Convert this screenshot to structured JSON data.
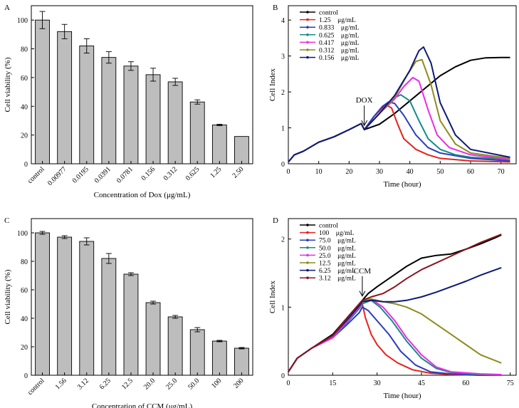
{
  "chart_data": [
    {
      "id": "A",
      "type": "bar",
      "panel_label": "A",
      "xlabel": "Concentration of Dox (μg/mL)",
      "ylabel": "Cell viability (%)",
      "ylim": [
        0,
        110
      ],
      "yticks": [
        0,
        20,
        40,
        60,
        80,
        100
      ],
      "categories": [
        "control",
        "0.00977",
        "0.0195",
        "0.0391",
        "0.0781",
        "0.156",
        "0.312",
        "0.625",
        "1.25",
        "2.50"
      ],
      "values": [
        100,
        92,
        82,
        74,
        68,
        62,
        57,
        43,
        27,
        19
      ],
      "errors": [
        6,
        5,
        5,
        4,
        3,
        4.5,
        2.5,
        1.5,
        0.5,
        0
      ]
    },
    {
      "id": "B",
      "type": "line",
      "panel_label": "B",
      "xlabel": "Time (hour)",
      "ylabel": "Cell Index",
      "xlim": [
        0,
        75
      ],
      "ylim": [
        0,
        4.4
      ],
      "xticks": [
        0,
        10,
        20,
        30,
        40,
        50,
        60,
        70
      ],
      "yticks": [
        0,
        1,
        2,
        3,
        4
      ],
      "annotation": "DOX",
      "annotation_x": 25,
      "legend_position": "top-left",
      "series": [
        {
          "name": "control",
          "color": "#000000",
          "x": [
            0,
            2,
            5,
            10,
            15,
            20,
            24,
            25,
            30,
            35,
            40,
            45,
            50,
            55,
            60,
            65,
            70,
            73
          ],
          "y": [
            0.05,
            0.25,
            0.35,
            0.6,
            0.75,
            0.95,
            1.12,
            0.95,
            1.1,
            1.4,
            1.75,
            2.1,
            2.45,
            2.7,
            2.88,
            2.95,
            2.96,
            2.96
          ]
        },
        {
          "name": "1.25    μg/mL",
          "color": "#e8221a",
          "x": [
            0,
            2,
            5,
            10,
            15,
            20,
            24,
            25,
            28,
            32,
            34,
            36,
            38,
            42,
            46,
            50,
            60,
            73
          ],
          "y": [
            0.05,
            0.25,
            0.35,
            0.6,
            0.75,
            0.95,
            1.12,
            0.95,
            1.3,
            1.65,
            1.55,
            1.1,
            0.7,
            0.4,
            0.25,
            0.15,
            0.08,
            0.05
          ]
        },
        {
          "name": "0.833    μg/mL",
          "color": "#2a3bbf",
          "x": [
            0,
            2,
            5,
            10,
            15,
            20,
            24,
            25,
            28,
            31,
            33,
            35,
            38,
            42,
            46,
            50,
            60,
            73
          ],
          "y": [
            0.05,
            0.25,
            0.35,
            0.6,
            0.75,
            0.95,
            1.12,
            0.95,
            1.3,
            1.6,
            1.72,
            1.68,
            1.35,
            0.8,
            0.45,
            0.3,
            0.15,
            0.08
          ]
        },
        {
          "name": "0.625    μg/mL",
          "color": "#168a8a",
          "x": [
            0,
            2,
            5,
            10,
            15,
            20,
            24,
            25,
            30,
            34,
            37,
            40,
            43,
            46,
            50,
            55,
            60,
            73
          ],
          "y": [
            0.05,
            0.25,
            0.35,
            0.6,
            0.75,
            0.95,
            1.12,
            0.95,
            1.4,
            1.8,
            1.92,
            1.75,
            1.2,
            0.7,
            0.4,
            0.25,
            0.18,
            0.12
          ]
        },
        {
          "name": "0.417    μg/mL",
          "color": "#ee2ae6",
          "x": [
            0,
            2,
            5,
            10,
            15,
            20,
            24,
            25,
            30,
            35,
            38,
            41,
            43,
            46,
            49,
            53,
            60,
            73
          ],
          "y": [
            0.05,
            0.25,
            0.35,
            0.6,
            0.75,
            0.95,
            1.12,
            0.95,
            1.4,
            1.8,
            2.15,
            2.4,
            2.3,
            1.5,
            0.8,
            0.45,
            0.25,
            0.12
          ]
        },
        {
          "name": "0.312    μg/mL",
          "color": "#8c8c1c",
          "x": [
            0,
            2,
            5,
            10,
            15,
            20,
            24,
            25,
            30,
            35,
            39,
            42,
            44,
            47,
            50,
            55,
            60,
            73
          ],
          "y": [
            0.05,
            0.25,
            0.35,
            0.6,
            0.75,
            0.95,
            1.12,
            0.95,
            1.4,
            1.85,
            2.45,
            2.85,
            2.9,
            2.2,
            1.2,
            0.55,
            0.3,
            0.15
          ]
        },
        {
          "name": "0.156    μg/mL",
          "color": "#0d1a7a",
          "x": [
            0,
            2,
            5,
            10,
            15,
            20,
            24,
            25,
            30,
            35,
            40,
            43,
            44.5,
            47,
            50,
            55,
            60,
            73
          ],
          "y": [
            0.05,
            0.25,
            0.35,
            0.6,
            0.75,
            0.95,
            1.12,
            0.95,
            1.4,
            1.9,
            2.6,
            3.15,
            3.25,
            2.8,
            1.7,
            0.8,
            0.4,
            0.18
          ]
        }
      ]
    },
    {
      "id": "C",
      "type": "bar",
      "panel_label": "C",
      "xlabel": "Concentration of CCM  (μg/mL)",
      "ylabel": "Cell viability (%)",
      "ylim": [
        0,
        110
      ],
      "yticks": [
        0,
        20,
        40,
        60,
        80,
        100
      ],
      "categories": [
        "control",
        "1.56",
        "3.12",
        "6.25",
        "12.5",
        "20.0",
        "25.0",
        "50.0",
        "100",
        "200"
      ],
      "values": [
        100,
        97,
        94,
        82,
        71,
        51,
        41,
        32,
        24,
        19
      ],
      "errors": [
        1,
        1,
        2.5,
        3.5,
        1,
        1,
        1,
        1.5,
        0.5,
        0.5
      ]
    },
    {
      "id": "D",
      "type": "line",
      "panel_label": "D",
      "xlabel": "Time (hour)",
      "ylabel": "Cell Index",
      "xlim": [
        0,
        77
      ],
      "ylim": [
        0,
        2.3
      ],
      "xticks": [
        0,
        15,
        30,
        45,
        60,
        75
      ],
      "yticks": [
        0,
        1,
        2
      ],
      "annotation": "CCM",
      "annotation_x": 25,
      "legend_position": "top-left",
      "series": [
        {
          "name": "control",
          "color": "#000000",
          "x": [
            0,
            3,
            8,
            15,
            20,
            24,
            25,
            27,
            30,
            35,
            40,
            45,
            50,
            55,
            60,
            65,
            70,
            72
          ],
          "y": [
            0.05,
            0.25,
            0.4,
            0.6,
            0.85,
            1.05,
            1.1,
            1.2,
            1.3,
            1.45,
            1.6,
            1.72,
            1.76,
            1.78,
            1.85,
            1.93,
            2.02,
            2.06
          ]
        },
        {
          "name": "100    μg/mL",
          "color": "#e8221a",
          "x": [
            0,
            3,
            8,
            15,
            20,
            24,
            25,
            26,
            28,
            30,
            33,
            37,
            42,
            48,
            55,
            65,
            72
          ],
          "y": [
            0.05,
            0.25,
            0.4,
            0.55,
            0.8,
            1.0,
            1.05,
            0.85,
            0.6,
            0.45,
            0.3,
            0.18,
            0.08,
            0.03,
            0.01,
            0.0,
            0.0
          ]
        },
        {
          "name": "75.0    μg/mL",
          "color": "#2a3bbf",
          "x": [
            0,
            3,
            8,
            15,
            20,
            24,
            25,
            27,
            30,
            34,
            38,
            43,
            48,
            55,
            65,
            72
          ],
          "y": [
            0.05,
            0.25,
            0.4,
            0.55,
            0.75,
            0.92,
            1.0,
            0.95,
            0.8,
            0.6,
            0.35,
            0.15,
            0.05,
            0.02,
            0.0,
            0.0
          ]
        },
        {
          "name": "50.0    μg/mL",
          "color": "#168a8a",
          "x": [
            0,
            3,
            8,
            15,
            20,
            24,
            25,
            28,
            31,
            35,
            40,
            45,
            50,
            55,
            65,
            72
          ],
          "y": [
            0.05,
            0.25,
            0.4,
            0.55,
            0.78,
            0.98,
            1.05,
            1.1,
            1.0,
            0.8,
            0.5,
            0.25,
            0.1,
            0.04,
            0.01,
            0.0
          ]
        },
        {
          "name": "25.0    μg/mL",
          "color": "#ee2ae6",
          "x": [
            0,
            3,
            8,
            15,
            20,
            24,
            25,
            28,
            32,
            36,
            40,
            45,
            50,
            55,
            65,
            72
          ],
          "y": [
            0.05,
            0.25,
            0.4,
            0.55,
            0.8,
            1.0,
            1.08,
            1.12,
            1.0,
            0.8,
            0.55,
            0.3,
            0.12,
            0.05,
            0.02,
            0.01
          ]
        },
        {
          "name": "12.5    μg/mL",
          "color": "#8c8c1c",
          "x": [
            0,
            3,
            8,
            15,
            20,
            24,
            25,
            28,
            32,
            36,
            40,
            45,
            50,
            55,
            60,
            65,
            72
          ],
          "y": [
            0.05,
            0.25,
            0.4,
            0.58,
            0.82,
            1.02,
            1.1,
            1.12,
            1.08,
            1.05,
            1.0,
            0.9,
            0.75,
            0.6,
            0.45,
            0.3,
            0.18
          ]
        },
        {
          "name": "6.25    μg/mL",
          "color": "#0d1a7a",
          "x": [
            0,
            3,
            8,
            15,
            20,
            24,
            25,
            28,
            32,
            36,
            40,
            45,
            50,
            55,
            60,
            65,
            72
          ],
          "y": [
            0.05,
            0.25,
            0.4,
            0.58,
            0.82,
            1.02,
            1.08,
            1.1,
            1.08,
            1.08,
            1.1,
            1.15,
            1.22,
            1.3,
            1.38,
            1.47,
            1.58
          ]
        },
        {
          "name": "3.12    μg/mL",
          "color": "#8a1520",
          "x": [
            0,
            3,
            8,
            15,
            20,
            24,
            25,
            28,
            32,
            36,
            40,
            45,
            50,
            55,
            60,
            65,
            72
          ],
          "y": [
            0.05,
            0.25,
            0.4,
            0.58,
            0.85,
            1.05,
            1.1,
            1.15,
            1.2,
            1.3,
            1.42,
            1.55,
            1.65,
            1.75,
            1.85,
            1.95,
            2.07
          ]
        }
      ]
    }
  ]
}
